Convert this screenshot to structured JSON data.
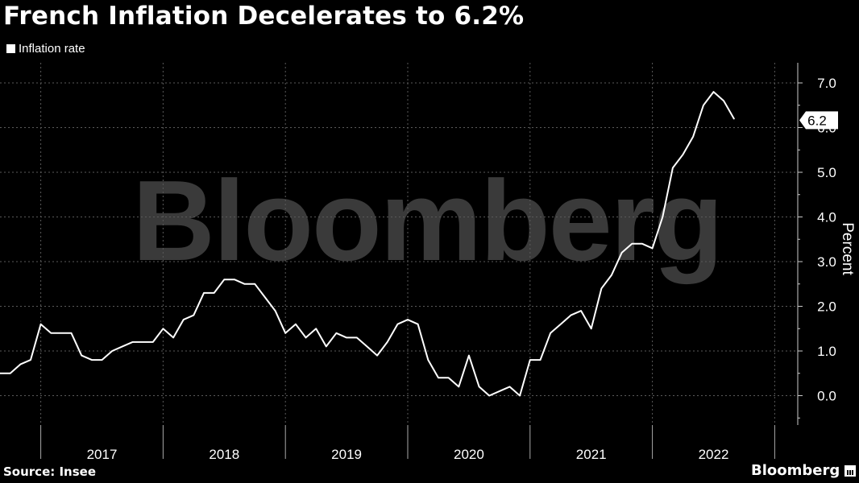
{
  "title": "French Inflation Decelerates to 6.2%",
  "watermark": "Bloomberg",
  "source": "Source: Insee",
  "brand": "Bloomberg",
  "colors": {
    "background": "#000000",
    "line": "#ffffff",
    "watermark": "#3a3a3a"
  },
  "chart_data": {
    "type": "line",
    "title": "French Inflation Decelerates to 6.2%",
    "ylabel": "Percent",
    "ylim": [
      -0.65,
      7.5
    ],
    "yticks": [
      "7.0",
      "6.0",
      "5.0",
      "4.0",
      "3.0",
      "2.0",
      "1.0",
      "0.0"
    ],
    "xlabels": [
      "2017",
      "2018",
      "2019",
      "2020",
      "2021",
      "2022"
    ],
    "grid": true,
    "legend_position": "top-left",
    "last_value_label": "6.2",
    "series": [
      {
        "name": "Inflation rate",
        "start": "2016-09",
        "frequency": "monthly",
        "values": [
          0.5,
          0.5,
          0.7,
          0.8,
          1.6,
          1.4,
          1.4,
          1.4,
          0.9,
          0.8,
          0.8,
          1.0,
          1.1,
          1.2,
          1.2,
          1.2,
          1.5,
          1.3,
          1.7,
          1.8,
          2.3,
          2.3,
          2.6,
          2.6,
          2.5,
          2.5,
          2.2,
          1.9,
          1.4,
          1.6,
          1.3,
          1.5,
          1.1,
          1.4,
          1.3,
          1.3,
          1.1,
          0.9,
          1.2,
          1.6,
          1.7,
          1.6,
          0.8,
          0.4,
          0.4,
          0.2,
          0.9,
          0.2,
          0.0,
          0.1,
          0.2,
          0.0,
          0.8,
          0.8,
          1.4,
          1.6,
          1.8,
          1.9,
          1.5,
          2.4,
          2.7,
          3.2,
          3.4,
          3.4,
          3.3,
          4.0,
          5.1,
          5.4,
          5.8,
          6.5,
          6.8,
          6.6,
          6.2
        ]
      }
    ]
  }
}
